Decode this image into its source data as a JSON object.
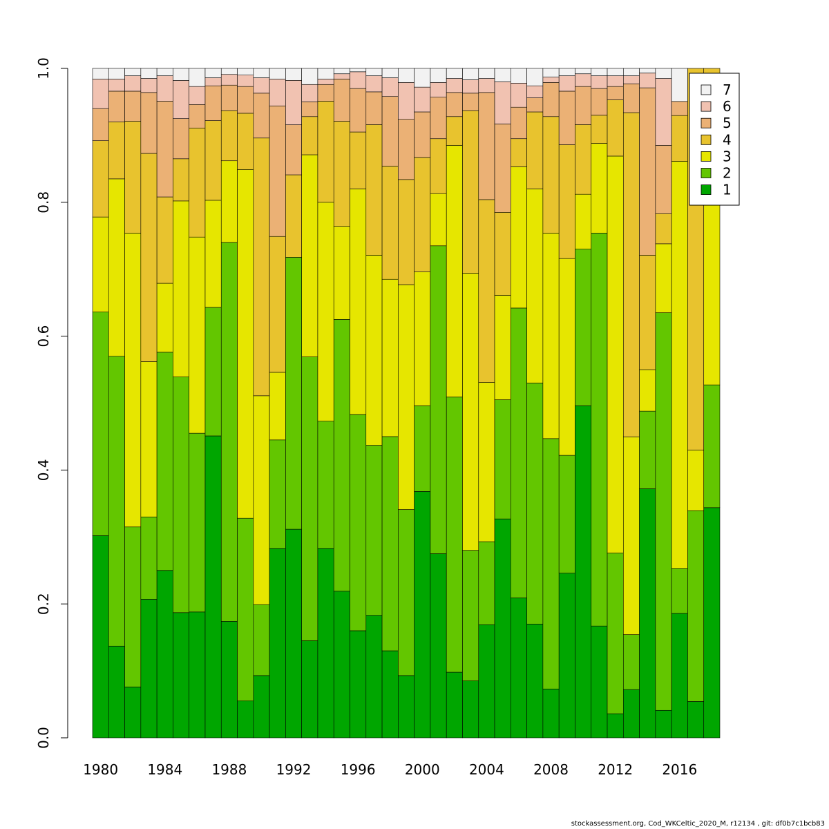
{
  "chart_data": {
    "type": "bar",
    "stacked": true,
    "title": "",
    "xlabel": "",
    "ylabel": "",
    "ylim": [
      0,
      1
    ],
    "y_ticks": [
      "0.0",
      "0.2",
      "0.4",
      "0.6",
      "0.8",
      "1.0"
    ],
    "x_ticks": [
      "1980",
      "1984",
      "1988",
      "1992",
      "1996",
      "2000",
      "2004",
      "2008",
      "2012",
      "2016"
    ],
    "categories": [
      1980,
      1981,
      1982,
      1983,
      1984,
      1985,
      1986,
      1987,
      1988,
      1989,
      1990,
      1991,
      1992,
      1993,
      1994,
      1995,
      1996,
      1997,
      1998,
      1999,
      2000,
      2001,
      2002,
      2003,
      2004,
      2005,
      2006,
      2007,
      2008,
      2009,
      2010,
      2011,
      2012,
      2013,
      2014,
      2015,
      2016,
      2017,
      2018
    ],
    "legend_position": "top-right",
    "series": [
      {
        "name": "1",
        "color": "#00a600",
        "values": [
          0.302,
          0.137,
          0.076,
          0.207,
          0.25,
          0.187,
          0.188,
          0.451,
          0.174,
          0.055,
          0.093,
          0.283,
          0.296,
          0.145,
          0.283,
          0.219,
          0.16,
          0.183,
          0.13,
          0.093,
          0.368,
          0.275,
          0.098,
          0.085,
          0.169,
          0.327,
          0.209,
          0.17,
          0.073,
          0.246,
          0.496,
          0.167,
          0.036,
          0.072,
          0.372,
          0.041,
          0.177,
          0.051,
          0.24
        ]
      },
      {
        "name": "2",
        "color": "#63c600",
        "values": [
          0.334,
          0.433,
          0.239,
          0.123,
          0.326,
          0.352,
          0.267,
          0.192,
          0.566,
          0.273,
          0.106,
          0.162,
          0.386,
          0.424,
          0.19,
          0.406,
          0.323,
          0.254,
          0.32,
          0.248,
          0.128,
          0.46,
          0.411,
          0.195,
          0.124,
          0.178,
          0.433,
          0.36,
          0.374,
          0.176,
          0.234,
          0.587,
          0.24,
          0.082,
          0.116,
          0.594,
          0.064,
          0.268,
          0.128
        ]
      },
      {
        "name": "3",
        "color": "#e6e600",
        "values": [
          0.142,
          0.265,
          0.439,
          0.232,
          0.103,
          0.263,
          0.293,
          0.16,
          0.122,
          0.521,
          0.312,
          0.101,
          0.0,
          0.302,
          0.327,
          0.139,
          0.337,
          0.284,
          0.235,
          0.336,
          0.2,
          0.078,
          0.376,
          0.414,
          0.238,
          0.156,
          0.211,
          0.29,
          0.307,
          0.294,
          0.082,
          0.134,
          0.593,
          0.295,
          0.062,
          0.103,
          0.579,
          0.085,
          0.274
        ]
      },
      {
        "name": "4",
        "color": "#e8c32e",
        "values": [
          0.114,
          0.085,
          0.167,
          0.311,
          0.129,
          0.063,
          0.163,
          0.119,
          0.075,
          0.084,
          0.385,
          0.203,
          0.117,
          0.057,
          0.151,
          0.157,
          0.085,
          0.195,
          0.169,
          0.157,
          0.171,
          0.082,
          0.043,
          0.243,
          0.273,
          0.124,
          0.042,
          0.115,
          0.174,
          0.17,
          0.104,
          0.042,
          0.084,
          0.484,
          0.171,
          0.045,
          0.065,
          0.536,
          0.056
        ]
      },
      {
        "name": "5",
        "color": "#ebb175",
        "values": [
          0.048,
          0.046,
          0.045,
          0.091,
          0.143,
          0.06,
          0.035,
          0.052,
          0.038,
          0.04,
          0.067,
          0.195,
          0.071,
          0.022,
          0.025,
          0.063,
          0.065,
          0.049,
          0.104,
          0.09,
          0.068,
          0.062,
          0.036,
          0.026,
          0.16,
          0.132,
          0.047,
          0.021,
          0.051,
          0.08,
          0.057,
          0.04,
          0.02,
          0.043,
          0.25,
          0.102,
          0.02,
          0.0,
          0.0
        ]
      },
      {
        "name": "6",
        "color": "#f1c2b1",
        "values": [
          0.044,
          0.018,
          0.023,
          0.021,
          0.038,
          0.057,
          0.027,
          0.012,
          0.016,
          0.017,
          0.023,
          0.04,
          0.063,
          0.026,
          0.008,
          0.008,
          0.025,
          0.024,
          0.028,
          0.055,
          0.037,
          0.022,
          0.021,
          0.02,
          0.021,
          0.063,
          0.036,
          0.018,
          0.008,
          0.023,
          0.019,
          0.019,
          0.016,
          0.012,
          0.022,
          0.1,
          0.0,
          0.0,
          0.0
        ]
      },
      {
        "name": "7",
        "color": "#f2f2f2",
        "values": [
          0.016,
          0.016,
          0.011,
          0.015,
          0.011,
          0.018,
          0.027,
          0.014,
          0.009,
          0.01,
          0.014,
          0.016,
          0.017,
          0.024,
          0.016,
          0.008,
          0.005,
          0.011,
          0.014,
          0.021,
          0.028,
          0.021,
          0.015,
          0.017,
          0.015,
          0.02,
          0.022,
          0.026,
          0.013,
          0.011,
          0.008,
          0.011,
          0.011,
          0.011,
          0.007,
          0.015,
          0.047,
          0.0,
          0.0
        ]
      }
    ]
  },
  "footer": "stockassessment.org, Cod_WKCeltic_2020_M, r12134 , git: df0b7c1bcb83"
}
